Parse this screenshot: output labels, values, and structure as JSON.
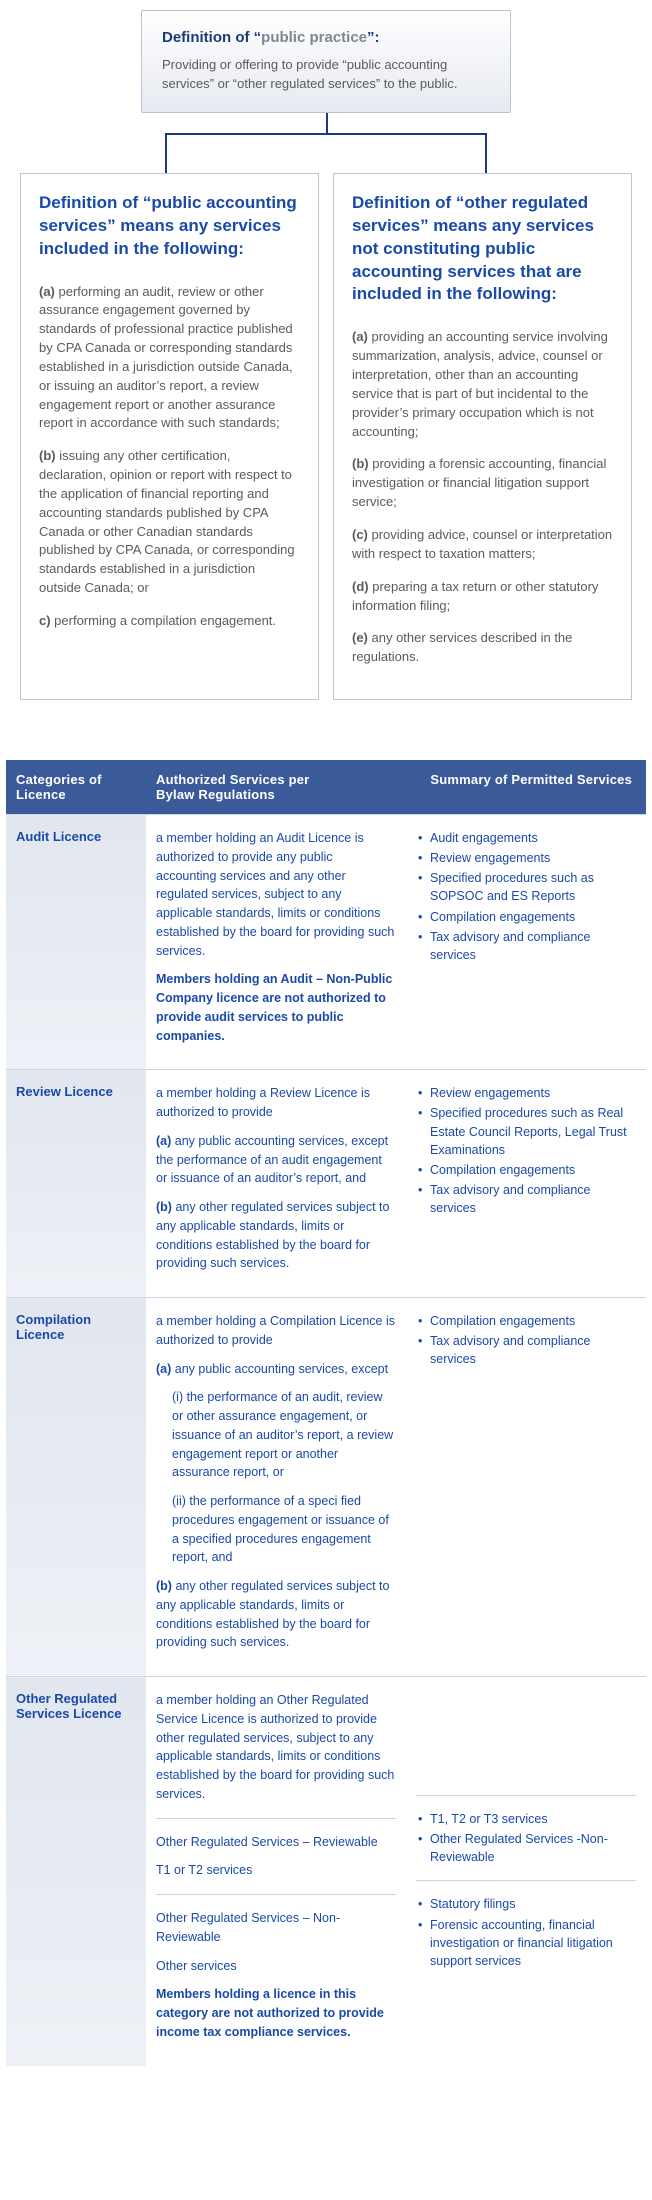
{
  "colors": {
    "accent_blue": "#1a4aa8",
    "header_bg": "#3a5a9a",
    "connector": "#1a3a7a",
    "box_border": "#c0c6d0",
    "row_border": "#c9d4e6",
    "cat_bg_top": "#e2e6ee",
    "cat_bg_bottom": "#eef1f6",
    "body_gray": "#5a5a62"
  },
  "top_box": {
    "title_prefix": "Definition of “",
    "title_gray": "public practice",
    "title_suffix": "”:",
    "body": "Providing or offering to provide “public accounting services” or “other regulated services” to the public."
  },
  "left_box": {
    "heading": "Definition of “public accounting services” means any services included in the following:",
    "items": [
      {
        "lead": "(a)",
        "text": " performing an audit, review or other assurance engagement governed by standards of professional practice published by CPA Canada or corresponding standards established in a jurisdiction outside Canada, or issuing an auditor’s report, a review engagement report or another assurance report in accordance with such standards;"
      },
      {
        "lead": "(b)",
        "text": " issuing any other certification, declaration, opinion or report with respect to the application of financial reporting and accounting standards published by CPA Canada or other Canadian standards published by CPA Canada, or corresponding standards established in a jurisdiction outside Canada; or"
      },
      {
        "lead": "c)",
        "text": " performing a compilation engagement."
      }
    ]
  },
  "right_box": {
    "heading": "Definition of “other regulated services” means any services not constituting public accounting services that are included in the following:",
    "items": [
      {
        "lead": "(a)",
        "text": " providing an accounting service involving summarization, analysis, advice, counsel or interpretation, other than an accounting service that is part of but incidental to the provider’s primary occupation which is not accounting;"
      },
      {
        "lead": "(b)",
        "text": " providing a forensic accounting, financial investigation or financial litigation support service;"
      },
      {
        "lead": "(c)",
        "text": " providing advice, counsel or interpretation with respect to taxation matters;"
      },
      {
        "lead": "(d)",
        "text": " preparing a tax return or other statutory information filing;"
      },
      {
        "lead": "(e)",
        "text": " any other services described in the regulations."
      }
    ]
  },
  "table": {
    "headers": {
      "col1": "Categories of Licence",
      "col2": "Authorized Services per Bylaw Regulations",
      "col3": "Summary of Permitted Services"
    },
    "rows": [
      {
        "category": "Audit Licence",
        "auth": [
          {
            "text": "a member holding an Audit Licence is authorized to provide any public accounting services and any other regulated services, subject to any applicable standards, limits or conditions established by the board for providing such services."
          },
          {
            "text": "Members holding an Audit – Non-Public Company licence are not authorized to provide audit services to public companies.",
            "strong": true
          }
        ],
        "summary": [
          "Audit engagements",
          "Review engagements",
          "Specified procedures such as SOPSOC and ES Reports",
          "Compilation engagements",
          "Tax advisory and compliance services"
        ]
      },
      {
        "category": "Review Licence",
        "auth": [
          {
            "text": "a member holding a Review Licence is authorized to provide"
          },
          {
            "lead": "(a)",
            "text": " any public accounting services, except the performance of an audit engagement or issuance of an auditor’s report, and"
          },
          {
            "lead": "(b)",
            "text": " any other regulated services subject to any applicable standards, limits or conditions established by the board for providing such services."
          }
        ],
        "summary": [
          "Review engagements",
          "Specified procedures such as Real Estate Council Reports, Legal Trust Examinations",
          "Compilation engagements",
          "Tax advisory and compliance services"
        ]
      },
      {
        "category": "Compilation Licence",
        "auth": [
          {
            "text": "a member holding a Compilation Licence is authorized to provide"
          },
          {
            "lead": "(a)",
            "text": " any public accounting services, except"
          },
          {
            "sub": true,
            "text": "(i) the performance of an audit, review or other assurance engagement, or issuance of an auditor’s report, a review engagement report or another assurance report, or"
          },
          {
            "sub": true,
            "text": "(ii) the performance of a speci fied procedures engagement or issuance of a specified procedures engagement report, and"
          },
          {
            "lead": "(b)",
            "text": " any other regulated services subject to any applicable standards, limits or conditions established by the board for providing such services."
          }
        ],
        "summary": [
          "Compilation engagements",
          "Tax advisory and compliance services"
        ]
      },
      {
        "category": "Other Regulated Services Licence",
        "auth_blocks": [
          {
            "paras": [
              {
                "text": "a member holding an Other Regulated Service Licence is authorized to provide other regulated services, subject to any applicable standards, limits or conditions established by the board for providing such services."
              }
            ],
            "summary": []
          },
          {
            "paras": [
              {
                "text": "Other Regulated Services – Reviewable"
              },
              {
                "text": "T1 or T2 services"
              }
            ],
            "summary": [
              "T1, T2 or T3 services",
              "Other Regulated Services -Non-Reviewable"
            ]
          },
          {
            "paras": [
              {
                "text": "Other Regulated Services – Non-Reviewable"
              },
              {
                "text": "Other services"
              },
              {
                "text": "Members holding a licence in this category are not authorized to provide income tax compliance services.",
                "strong": true
              }
            ],
            "summary": [
              "Statutory filings",
              "Forensic accounting, financial investigation or financial litigation support services"
            ]
          }
        ]
      }
    ]
  }
}
